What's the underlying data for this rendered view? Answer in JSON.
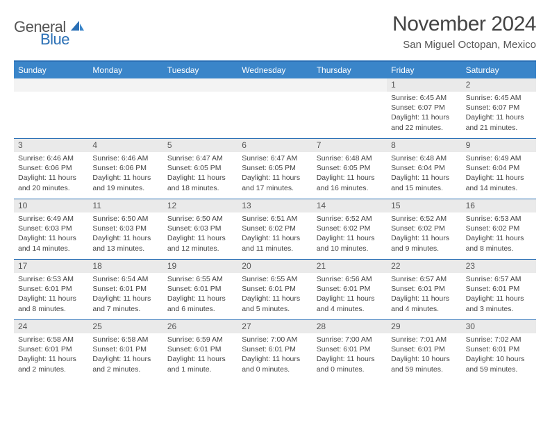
{
  "logo": {
    "text1": "General",
    "text2": "Blue"
  },
  "title": "November 2024",
  "subtitle": "San Miguel Octopan, Mexico",
  "colors": {
    "header_bg": "#3a85c9",
    "border": "#2a6fb5",
    "daynum_bg": "#eaeaea",
    "text_dark": "#444444",
    "text_mid": "#555555"
  },
  "day_labels": [
    "Sunday",
    "Monday",
    "Tuesday",
    "Wednesday",
    "Thursday",
    "Friday",
    "Saturday"
  ],
  "weeks": [
    [
      {
        "n": "",
        "empty": true
      },
      {
        "n": "",
        "empty": true
      },
      {
        "n": "",
        "empty": true
      },
      {
        "n": "",
        "empty": true
      },
      {
        "n": "",
        "empty": true
      },
      {
        "n": "1",
        "sunrise": "Sunrise: 6:45 AM",
        "sunset": "Sunset: 6:07 PM",
        "dl1": "Daylight: 11 hours",
        "dl2": "and 22 minutes."
      },
      {
        "n": "2",
        "sunrise": "Sunrise: 6:45 AM",
        "sunset": "Sunset: 6:07 PM",
        "dl1": "Daylight: 11 hours",
        "dl2": "and 21 minutes."
      }
    ],
    [
      {
        "n": "3",
        "sunrise": "Sunrise: 6:46 AM",
        "sunset": "Sunset: 6:06 PM",
        "dl1": "Daylight: 11 hours",
        "dl2": "and 20 minutes."
      },
      {
        "n": "4",
        "sunrise": "Sunrise: 6:46 AM",
        "sunset": "Sunset: 6:06 PM",
        "dl1": "Daylight: 11 hours",
        "dl2": "and 19 minutes."
      },
      {
        "n": "5",
        "sunrise": "Sunrise: 6:47 AM",
        "sunset": "Sunset: 6:05 PM",
        "dl1": "Daylight: 11 hours",
        "dl2": "and 18 minutes."
      },
      {
        "n": "6",
        "sunrise": "Sunrise: 6:47 AM",
        "sunset": "Sunset: 6:05 PM",
        "dl1": "Daylight: 11 hours",
        "dl2": "and 17 minutes."
      },
      {
        "n": "7",
        "sunrise": "Sunrise: 6:48 AM",
        "sunset": "Sunset: 6:05 PM",
        "dl1": "Daylight: 11 hours",
        "dl2": "and 16 minutes."
      },
      {
        "n": "8",
        "sunrise": "Sunrise: 6:48 AM",
        "sunset": "Sunset: 6:04 PM",
        "dl1": "Daylight: 11 hours",
        "dl2": "and 15 minutes."
      },
      {
        "n": "9",
        "sunrise": "Sunrise: 6:49 AM",
        "sunset": "Sunset: 6:04 PM",
        "dl1": "Daylight: 11 hours",
        "dl2": "and 14 minutes."
      }
    ],
    [
      {
        "n": "10",
        "sunrise": "Sunrise: 6:49 AM",
        "sunset": "Sunset: 6:03 PM",
        "dl1": "Daylight: 11 hours",
        "dl2": "and 14 minutes."
      },
      {
        "n": "11",
        "sunrise": "Sunrise: 6:50 AM",
        "sunset": "Sunset: 6:03 PM",
        "dl1": "Daylight: 11 hours",
        "dl2": "and 13 minutes."
      },
      {
        "n": "12",
        "sunrise": "Sunrise: 6:50 AM",
        "sunset": "Sunset: 6:03 PM",
        "dl1": "Daylight: 11 hours",
        "dl2": "and 12 minutes."
      },
      {
        "n": "13",
        "sunrise": "Sunrise: 6:51 AM",
        "sunset": "Sunset: 6:02 PM",
        "dl1": "Daylight: 11 hours",
        "dl2": "and 11 minutes."
      },
      {
        "n": "14",
        "sunrise": "Sunrise: 6:52 AM",
        "sunset": "Sunset: 6:02 PM",
        "dl1": "Daylight: 11 hours",
        "dl2": "and 10 minutes."
      },
      {
        "n": "15",
        "sunrise": "Sunrise: 6:52 AM",
        "sunset": "Sunset: 6:02 PM",
        "dl1": "Daylight: 11 hours",
        "dl2": "and 9 minutes."
      },
      {
        "n": "16",
        "sunrise": "Sunrise: 6:53 AM",
        "sunset": "Sunset: 6:02 PM",
        "dl1": "Daylight: 11 hours",
        "dl2": "and 8 minutes."
      }
    ],
    [
      {
        "n": "17",
        "sunrise": "Sunrise: 6:53 AM",
        "sunset": "Sunset: 6:01 PM",
        "dl1": "Daylight: 11 hours",
        "dl2": "and 8 minutes."
      },
      {
        "n": "18",
        "sunrise": "Sunrise: 6:54 AM",
        "sunset": "Sunset: 6:01 PM",
        "dl1": "Daylight: 11 hours",
        "dl2": "and 7 minutes."
      },
      {
        "n": "19",
        "sunrise": "Sunrise: 6:55 AM",
        "sunset": "Sunset: 6:01 PM",
        "dl1": "Daylight: 11 hours",
        "dl2": "and 6 minutes."
      },
      {
        "n": "20",
        "sunrise": "Sunrise: 6:55 AM",
        "sunset": "Sunset: 6:01 PM",
        "dl1": "Daylight: 11 hours",
        "dl2": "and 5 minutes."
      },
      {
        "n": "21",
        "sunrise": "Sunrise: 6:56 AM",
        "sunset": "Sunset: 6:01 PM",
        "dl1": "Daylight: 11 hours",
        "dl2": "and 4 minutes."
      },
      {
        "n": "22",
        "sunrise": "Sunrise: 6:57 AM",
        "sunset": "Sunset: 6:01 PM",
        "dl1": "Daylight: 11 hours",
        "dl2": "and 4 minutes."
      },
      {
        "n": "23",
        "sunrise": "Sunrise: 6:57 AM",
        "sunset": "Sunset: 6:01 PM",
        "dl1": "Daylight: 11 hours",
        "dl2": "and 3 minutes."
      }
    ],
    [
      {
        "n": "24",
        "sunrise": "Sunrise: 6:58 AM",
        "sunset": "Sunset: 6:01 PM",
        "dl1": "Daylight: 11 hours",
        "dl2": "and 2 minutes."
      },
      {
        "n": "25",
        "sunrise": "Sunrise: 6:58 AM",
        "sunset": "Sunset: 6:01 PM",
        "dl1": "Daylight: 11 hours",
        "dl2": "and 2 minutes."
      },
      {
        "n": "26",
        "sunrise": "Sunrise: 6:59 AM",
        "sunset": "Sunset: 6:01 PM",
        "dl1": "Daylight: 11 hours",
        "dl2": "and 1 minute."
      },
      {
        "n": "27",
        "sunrise": "Sunrise: 7:00 AM",
        "sunset": "Sunset: 6:01 PM",
        "dl1": "Daylight: 11 hours",
        "dl2": "and 0 minutes."
      },
      {
        "n": "28",
        "sunrise": "Sunrise: 7:00 AM",
        "sunset": "Sunset: 6:01 PM",
        "dl1": "Daylight: 11 hours",
        "dl2": "and 0 minutes."
      },
      {
        "n": "29",
        "sunrise": "Sunrise: 7:01 AM",
        "sunset": "Sunset: 6:01 PM",
        "dl1": "Daylight: 10 hours",
        "dl2": "and 59 minutes."
      },
      {
        "n": "30",
        "sunrise": "Sunrise: 7:02 AM",
        "sunset": "Sunset: 6:01 PM",
        "dl1": "Daylight: 10 hours",
        "dl2": "and 59 minutes."
      }
    ]
  ]
}
